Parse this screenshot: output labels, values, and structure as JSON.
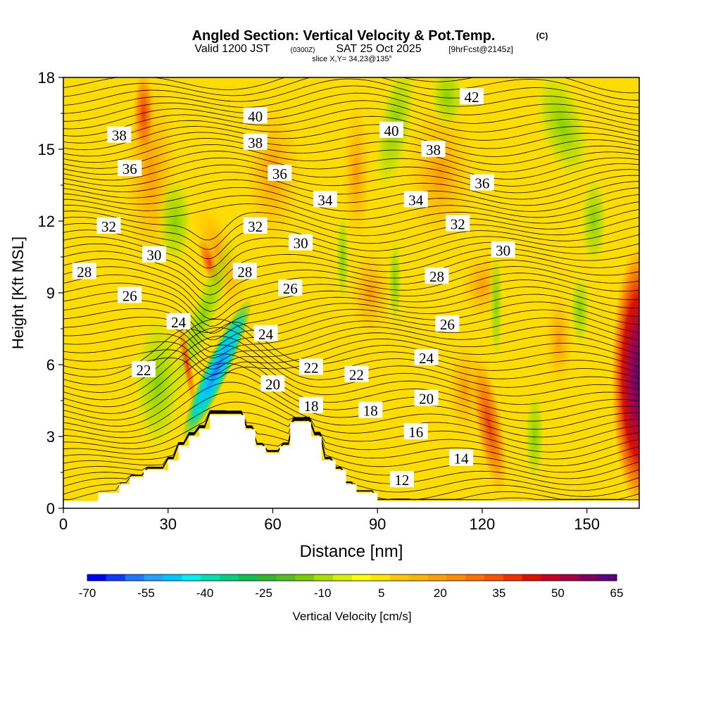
{
  "title": {
    "main": "Angled Section: Vertical Velocity & Pot.Temp.",
    "main_tag": "(C)",
    "valid_prefix": "Valid 1200 JST",
    "valid_utc": "(0300Z)",
    "valid_date": "SAT 25 Oct 2025",
    "valid_fcst": "[9hrFcst@2145z]",
    "slice": "slice X,Y= 34,23@135°"
  },
  "chart_data": {
    "type": "heatmap",
    "title": "Angled Section: Vertical Velocity & Pot.Temp.",
    "xlabel": "Distance [nm]",
    "ylabel": "Height [Kft MSL]",
    "xlim": [
      0,
      165
    ],
    "ylim": [
      0,
      18
    ],
    "x_ticks": [
      "0",
      "30",
      "60",
      "90",
      "120",
      "150"
    ],
    "y_ticks": [
      "0",
      "3",
      "6",
      "9",
      "12",
      "15",
      "18"
    ],
    "colorbar": {
      "label": "Vertical Velocity [cm/s]",
      "min": -70,
      "max": 65,
      "step": 5,
      "tick_labels": [
        "-70",
        "-55",
        "-40",
        "-25",
        "-10",
        "5",
        "20",
        "35",
        "50",
        "65"
      ],
      "colors": [
        "#0000ff",
        "#0a3cff",
        "#1e78ff",
        "#28a0ff",
        "#00c8ff",
        "#00f0f0",
        "#00e0b4",
        "#00d080",
        "#10c050",
        "#30b830",
        "#50c020",
        "#78d000",
        "#a8e000",
        "#d8f000",
        "#ffff00",
        "#ffe600",
        "#ffc800",
        "#ffb400",
        "#ffa000",
        "#ff8c00",
        "#ff7000",
        "#ff5000",
        "#f03000",
        "#e01000",
        "#c80028",
        "#a80048",
        "#800060",
        "#600080"
      ]
    },
    "theta_contours": {
      "field": "Potential Temperature (C)",
      "interval": 1,
      "labels": [
        {
          "value": "42",
          "x": 117,
          "y": 17.2
        },
        {
          "value": "40",
          "x": 55,
          "y": 16.4
        },
        {
          "value": "40",
          "x": 94,
          "y": 15.8
        },
        {
          "value": "38",
          "x": 16,
          "y": 15.6
        },
        {
          "value": "38",
          "x": 55,
          "y": 15.3
        },
        {
          "value": "38",
          "x": 106,
          "y": 15.0
        },
        {
          "value": "36",
          "x": 19,
          "y": 14.2
        },
        {
          "value": "36",
          "x": 62,
          "y": 14.0
        },
        {
          "value": "36",
          "x": 120,
          "y": 13.6
        },
        {
          "value": "34",
          "x": 75,
          "y": 12.9
        },
        {
          "value": "34",
          "x": 101,
          "y": 12.9
        },
        {
          "value": "32",
          "x": 13,
          "y": 11.8
        },
        {
          "value": "32",
          "x": 55,
          "y": 11.8
        },
        {
          "value": "32",
          "x": 113,
          "y": 11.9
        },
        {
          "value": "30",
          "x": 26,
          "y": 10.6
        },
        {
          "value": "30",
          "x": 68,
          "y": 11.1
        },
        {
          "value": "30",
          "x": 126,
          "y": 10.8
        },
        {
          "value": "28",
          "x": 6,
          "y": 9.9
        },
        {
          "value": "28",
          "x": 52,
          "y": 9.9
        },
        {
          "value": "28",
          "x": 107,
          "y": 9.7
        },
        {
          "value": "26",
          "x": 19,
          "y": 8.9
        },
        {
          "value": "26",
          "x": 65,
          "y": 9.2
        },
        {
          "value": "26",
          "x": 110,
          "y": 7.7
        },
        {
          "value": "24",
          "x": 33,
          "y": 7.8
        },
        {
          "value": "24",
          "x": 58,
          "y": 7.3
        },
        {
          "value": "24",
          "x": 104,
          "y": 6.3
        },
        {
          "value": "22",
          "x": 23,
          "y": 5.8
        },
        {
          "value": "22",
          "x": 71,
          "y": 5.9
        },
        {
          "value": "22",
          "x": 84,
          "y": 5.6
        },
        {
          "value": "20",
          "x": 60,
          "y": 5.2
        },
        {
          "value": "20",
          "x": 104,
          "y": 4.6
        },
        {
          "value": "18",
          "x": 71,
          "y": 4.3
        },
        {
          "value": "18",
          "x": 88,
          "y": 4.1
        },
        {
          "value": "16",
          "x": 101,
          "y": 3.2
        },
        {
          "value": "14",
          "x": 114,
          "y": 2.1
        },
        {
          "value": "12",
          "x": 97,
          "y": 1.2
        }
      ]
    },
    "terrain_kft": [
      [
        0,
        0.3
      ],
      [
        10,
        0.3
      ],
      [
        10,
        0.65
      ],
      [
        16,
        0.65
      ],
      [
        16,
        1.0
      ],
      [
        19,
        1.0
      ],
      [
        19,
        1.3
      ],
      [
        23,
        1.3
      ],
      [
        23,
        1.6
      ],
      [
        26,
        1.6
      ],
      [
        26,
        1.6
      ],
      [
        30,
        1.6
      ],
      [
        30,
        2.0
      ],
      [
        33,
        2.0
      ],
      [
        33,
        2.6
      ],
      [
        36,
        2.6
      ],
      [
        36,
        3.0
      ],
      [
        39,
        3.0
      ],
      [
        39,
        3.3
      ],
      [
        42,
        3.3
      ],
      [
        42,
        3.9
      ],
      [
        52,
        3.9
      ],
      [
        52,
        3.3
      ],
      [
        55,
        3.3
      ],
      [
        55,
        2.6
      ],
      [
        58,
        2.6
      ],
      [
        58,
        2.3
      ],
      [
        62,
        2.3
      ],
      [
        62,
        2.6
      ],
      [
        65,
        2.6
      ],
      [
        65,
        3.6
      ],
      [
        71,
        3.6
      ],
      [
        71,
        3.0
      ],
      [
        74,
        3.0
      ],
      [
        74,
        2.0
      ],
      [
        78,
        2.0
      ],
      [
        78,
        1.6
      ],
      [
        81,
        1.6
      ],
      [
        81,
        1.0
      ],
      [
        84,
        1.0
      ],
      [
        84,
        0.65
      ],
      [
        90,
        0.65
      ],
      [
        90,
        0.3
      ],
      [
        120,
        0.3
      ],
      [
        165,
        0.3
      ]
    ]
  }
}
